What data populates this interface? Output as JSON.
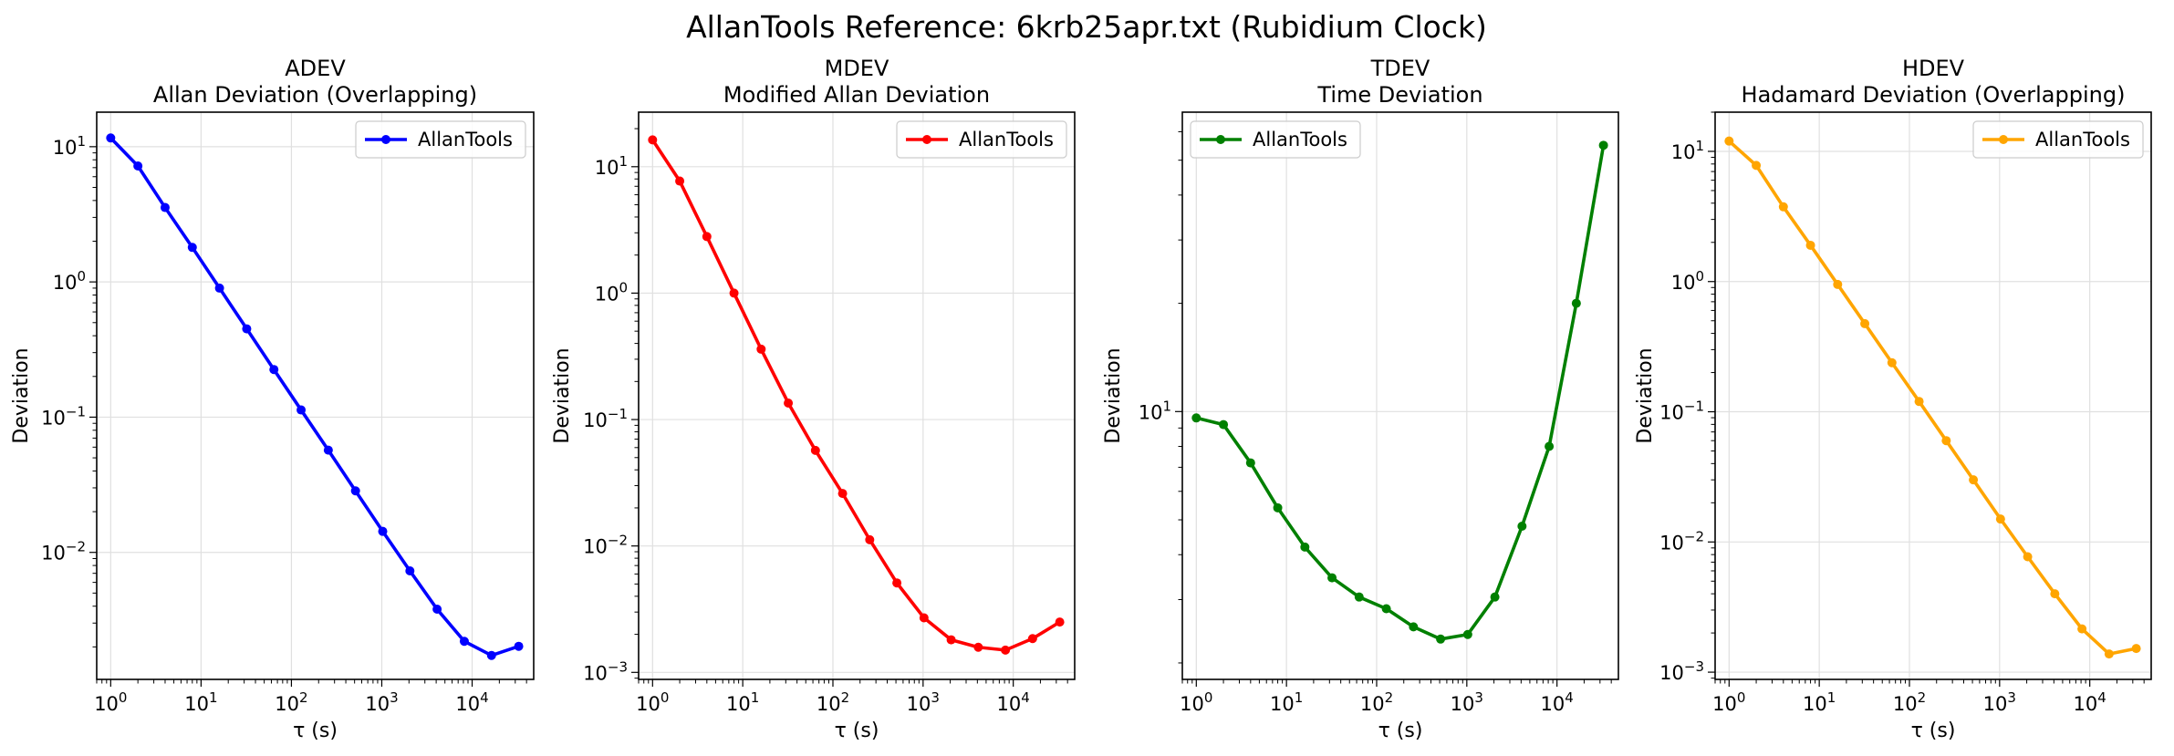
{
  "figure": {
    "title": "AllanTools Reference: 6krb25apr.txt (Rubidium Clock)"
  },
  "chart_data": [
    {
      "type": "line",
      "title": "ADEV",
      "subtitle": "Allan Deviation (Overlapping)",
      "xlabel": "τ (s)",
      "ylabel": "Deviation",
      "xscale": "log",
      "yscale": "log",
      "xlim": [
        0.7,
        48000
      ],
      "ylim": [
        0.00115,
        18
      ],
      "grid": true,
      "legend": "top-right",
      "color": "#0000ff",
      "series": [
        {
          "name": "AllanTools",
          "x": [
            1,
            2,
            4,
            8,
            16,
            32,
            64,
            128,
            256,
            512,
            1024,
            2048,
            4096,
            8192,
            16384,
            32768
          ],
          "y": [
            11.6,
            7.2,
            3.55,
            1.8,
            0.9,
            0.45,
            0.225,
            0.113,
            0.057,
            0.0285,
            0.0143,
            0.0073,
            0.0038,
            0.0022,
            0.00173,
            0.00202
          ]
        }
      ]
    },
    {
      "type": "line",
      "title": "MDEV",
      "subtitle": "Modified Allan Deviation",
      "xlabel": "τ (s)",
      "ylabel": "Deviation",
      "xscale": "log",
      "yscale": "log",
      "xlim": [
        0.7,
        48000
      ],
      "ylim": [
        0.00088,
        27
      ],
      "grid": true,
      "legend": "top-right",
      "color": "#ff0000",
      "series": [
        {
          "name": "AllanTools",
          "x": [
            1,
            2,
            4,
            8,
            16,
            32,
            64,
            128,
            256,
            512,
            1024,
            2048,
            4096,
            8192,
            16384,
            32768
          ],
          "y": [
            16.3,
            7.7,
            2.8,
            1.0,
            0.36,
            0.135,
            0.057,
            0.026,
            0.0112,
            0.0051,
            0.0027,
            0.00181,
            0.00158,
            0.0015,
            0.00185,
            0.0025
          ]
        }
      ]
    },
    {
      "type": "line",
      "title": "TDEV",
      "subtitle": "Time Deviation",
      "xlabel": "τ (s)",
      "ylabel": "Deviation",
      "xscale": "log",
      "yscale": "log",
      "xlim": [
        0.7,
        48000
      ],
      "ylim": [
        1.8,
        68
      ],
      "grid": true,
      "legend": "top-left",
      "color": "#008000",
      "series": [
        {
          "name": "AllanTools",
          "x": [
            1,
            2,
            4,
            8,
            16,
            32,
            64,
            128,
            256,
            512,
            1024,
            2048,
            4096,
            8192,
            16384,
            32768
          ],
          "y": [
            9.6,
            9.2,
            7.2,
            5.4,
            4.2,
            3.45,
            3.05,
            2.83,
            2.52,
            2.33,
            2.4,
            3.05,
            4.8,
            8.0,
            20.0,
            55.0
          ]
        }
      ]
    },
    {
      "type": "line",
      "title": "HDEV",
      "subtitle": "Hadamard Deviation (Overlapping)",
      "xlabel": "τ (s)",
      "ylabel": "Deviation",
      "xscale": "log",
      "yscale": "log",
      "xlim": [
        0.7,
        48000
      ],
      "ylim": [
        0.00088,
        20
      ],
      "grid": true,
      "legend": "top-right",
      "color": "#ffa500",
      "series": [
        {
          "name": "AllanTools",
          "x": [
            1,
            2,
            4,
            8,
            16,
            32,
            64,
            128,
            256,
            512,
            1024,
            2048,
            4096,
            8192,
            16384,
            32768
          ],
          "y": [
            12.0,
            7.8,
            3.75,
            1.9,
            0.95,
            0.475,
            0.238,
            0.12,
            0.06,
            0.03,
            0.015,
            0.0077,
            0.004,
            0.00215,
            0.00138,
            0.00152
          ]
        }
      ]
    }
  ]
}
